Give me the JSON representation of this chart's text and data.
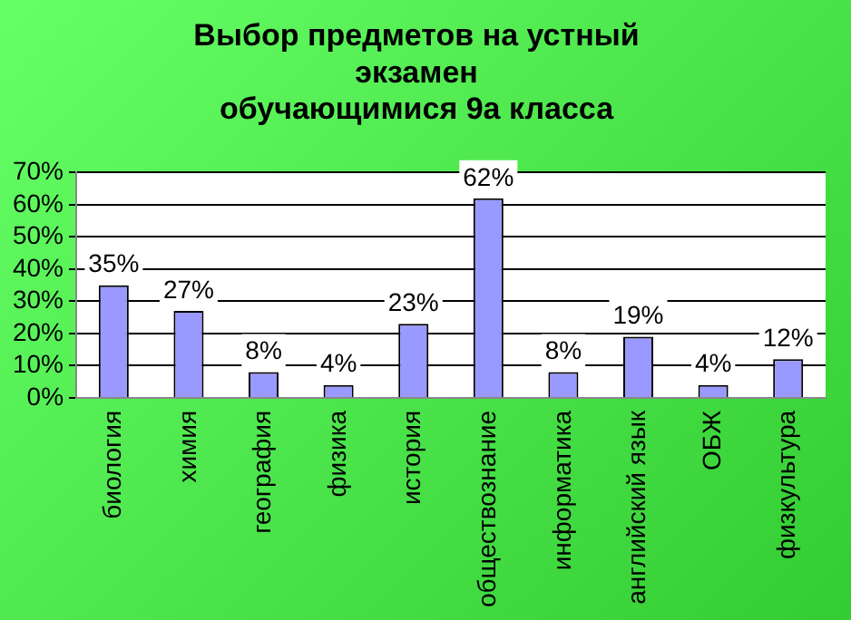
{
  "chart_data": {
    "type": "bar",
    "title": "Выбор предметов на устный\nэкзамен\nобучающимися 9а класса",
    "categories": [
      "биология",
      "химия",
      "география",
      "физика",
      "история",
      "обществознание",
      "информатика",
      "английский язык",
      "ОБЖ",
      "физкультура"
    ],
    "values": [
      35,
      27,
      8,
      4,
      23,
      62,
      8,
      19,
      4,
      12
    ],
    "value_labels": [
      "35%",
      "27%",
      "8%",
      "4%",
      "23%",
      "62%",
      "8%",
      "19%",
      "4%",
      "12%"
    ],
    "color": "#9999ff",
    "ylim": [
      0,
      70
    ],
    "yticks": [
      {
        "value": 0,
        "label": "0%"
      },
      {
        "value": 10,
        "label": "10%"
      },
      {
        "value": 20,
        "label": "20%"
      },
      {
        "value": 30,
        "label": "30%"
      },
      {
        "value": 40,
        "label": "40%"
      },
      {
        "value": 50,
        "label": "50%"
      },
      {
        "value": 60,
        "label": "60%"
      },
      {
        "value": 70,
        "label": "70%"
      }
    ],
    "grid": "y",
    "legend": false
  }
}
